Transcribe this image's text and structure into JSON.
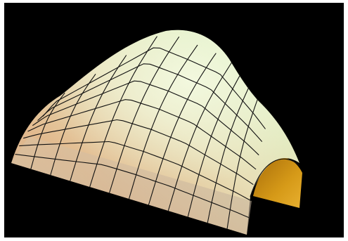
{
  "scene": {
    "subject": "3d-shaded-surface-mesh",
    "background_color": "#000000",
    "page_background_color": "#ffffff",
    "colors": {
      "highlight": "#eef6d6",
      "light_green": "#dfeec2",
      "cream": "#e8e0b8",
      "peach": "#e2b98d",
      "shadow_tan": "#c9b196",
      "inner_orange": "#d69a18",
      "inner_dark": "#a86d0a",
      "grid_line": "#111111"
    },
    "grid": {
      "u_divisions": 12,
      "v_divisions": 8
    }
  }
}
